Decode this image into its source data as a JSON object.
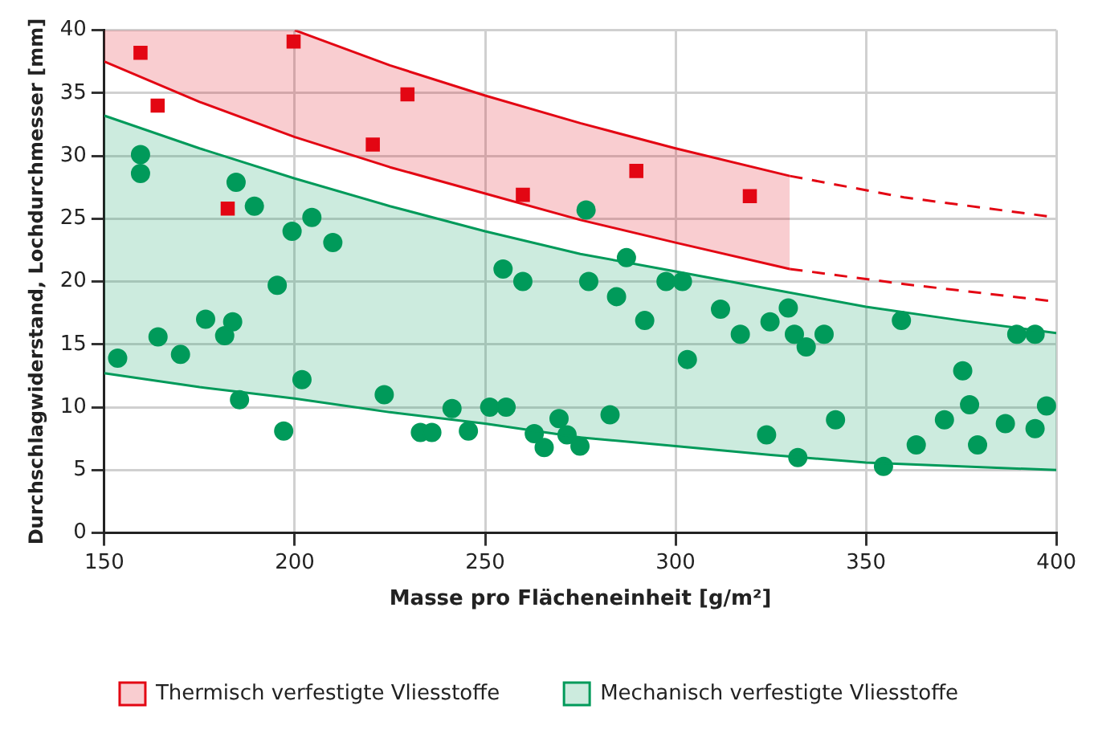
{
  "chart_data": {
    "type": "scatter",
    "xlabel": "Masse pro Flächeneinheit [g/m²]",
    "ylabel": "Durchschlagwiderstand, Lochdurchmesser [mm]",
    "xlim": [
      150,
      400
    ],
    "xticks": [
      150,
      200,
      250,
      300,
      350,
      400
    ],
    "ylim": [
      0,
      40
    ],
    "yticks": [
      0,
      5,
      10,
      15,
      20,
      25,
      30,
      35,
      40
    ],
    "grid": true,
    "legend": "bottom",
    "series": [
      {
        "name": "Thermisch verfestigte Vliesstoffe",
        "type": "line",
        "color": "#e30613",
        "line_style": "solid",
        "x": [
          150,
          175,
          200,
          225,
          250,
          275,
          300,
          330
        ],
        "values": [
          37.5,
          34.3,
          31.5,
          29.1,
          27.0,
          24.9,
          23.1,
          21.0
        ],
        "lower": [
          37.5,
          34.3,
          31.5,
          29.1,
          27.0,
          24.9,
          23.1,
          21.0
        ],
        "upper": [
          40,
          40,
          40,
          37.2,
          34.8,
          32.6,
          30.6,
          28.4
        ]
      },
      {
        "type": "line",
        "color": "#e30613",
        "line_style": "solid",
        "x": [
          200,
          225,
          250,
          275,
          300,
          330
        ],
        "values": [
          40,
          37.2,
          34.8,
          32.6,
          30.6,
          28.4
        ]
      },
      {
        "type": "line",
        "color": "#e30613",
        "line_style": "dashed",
        "x": [
          330,
          360,
          400
        ],
        "values": [
          28.4,
          26.7,
          25.1
        ]
      },
      {
        "type": "line",
        "color": "#e30613",
        "line_style": "dashed",
        "x": [
          330,
          360,
          400
        ],
        "values": [
          21.0,
          19.8,
          18.4
        ]
      },
      {
        "name": "Mechanisch verfestigte Vliesstoffe",
        "type": "line",
        "color": "#009a5a",
        "line_style": "solid",
        "x": [
          150,
          175,
          200,
          225,
          250,
          275,
          300,
          325,
          350,
          375,
          400
        ],
        "values": [
          33.2,
          30.6,
          28.2,
          26.0,
          24.0,
          22.2,
          20.8,
          19.4,
          18.0,
          16.9,
          15.9
        ],
        "lower": [
          12.7,
          11.6,
          10.7,
          9.6,
          8.7,
          7.6,
          6.9,
          6.2,
          5.6,
          5.3,
          5.0
        ],
        "upper": [
          33.2,
          30.6,
          28.2,
          26.0,
          24.0,
          22.2,
          20.8,
          19.4,
          18.0,
          16.9,
          15.9
        ]
      },
      {
        "type": "line",
        "color": "#009a5a",
        "line_style": "solid",
        "x": [
          150,
          175,
          200,
          225,
          250,
          275,
          300,
          325,
          350,
          375,
          400
        ],
        "values": [
          12.7,
          11.6,
          10.7,
          9.6,
          8.7,
          7.6,
          6.9,
          6.2,
          5.6,
          5.3,
          5.0
        ]
      },
      {
        "type": "scatter",
        "color": "#e30613",
        "marker": "square",
        "x": [
          159.5,
          164,
          182.4,
          199.7,
          220.5,
          229.6,
          259.9,
          289.7,
          319.5
        ],
        "values": [
          38.2,
          34.0,
          25.8,
          39.1,
          30.9,
          34.9,
          26.9,
          28.8,
          26.8
        ]
      },
      {
        "type": "scatter",
        "color": "#009a5a",
        "marker": "circle",
        "x": [
          153.5,
          159.5,
          159.5,
          164.1,
          170,
          176.6,
          181.6,
          183.7,
          184.6,
          185.5,
          189.4,
          195.4,
          197.1,
          199.3,
          201.9,
          204.5,
          210,
          223.5,
          233,
          236,
          241.3,
          245.6,
          251.2,
          254.7,
          255.5,
          259.9,
          262.9,
          265.5,
          269.4,
          271.5,
          274.9,
          276.5,
          277.2,
          282.8,
          284.5,
          287.1,
          291.9,
          297.5,
          301.8,
          303.1,
          311.8,
          317,
          323.9,
          324.8,
          329.6,
          331.2,
          332.1,
          334.3,
          339,
          342,
          354.6,
          359.3,
          363.2,
          370.6,
          375.4,
          377.2,
          379.3,
          386.6,
          389.6,
          394.4,
          394.4,
          397.4
        ],
        "values": [
          13.9,
          30.1,
          28.6,
          15.6,
          14.2,
          17.0,
          15.7,
          16.8,
          27.9,
          10.6,
          26.0,
          19.7,
          8.1,
          24.0,
          12.2,
          25.1,
          23.1,
          11.0,
          8.0,
          8.0,
          9.9,
          8.1,
          10.0,
          21.0,
          10.0,
          20.0,
          7.9,
          6.8,
          9.1,
          7.8,
          6.9,
          25.7,
          20.0,
          9.4,
          18.8,
          21.9,
          16.9,
          20.0,
          20.0,
          13.8,
          17.8,
          15.8,
          7.8,
          16.8,
          17.9,
          15.8,
          6.0,
          14.8,
          15.8,
          9.0,
          5.3,
          16.9,
          7.0,
          9.0,
          12.9,
          10.2,
          7.0,
          8.7,
          15.8,
          15.8,
          8.3,
          10.1
        ]
      }
    ]
  }
}
